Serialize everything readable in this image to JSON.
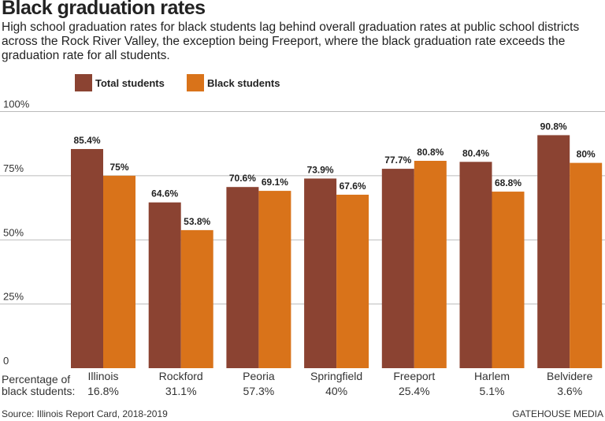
{
  "chart_data": {
    "type": "bar",
    "title": "Black graduation rates",
    "subtitle": "High school graduation rates for black students lag behind overall graduation rates at public school districts across the Rock River Valley, the exception being Freeport, where the black graduation rate exceeds the graduation rate for all students.",
    "categories": [
      "Illinois",
      "Rockford",
      "Peoria",
      "Springfield",
      "Freeport",
      "Harlem",
      "Belvidere"
    ],
    "series": [
      {
        "name": "Total students",
        "color": "#8B4332",
        "values": [
          85.4,
          64.6,
          70.6,
          73.9,
          77.7,
          80.4,
          90.8
        ],
        "labels": [
          "85.4%",
          "64.6%",
          "70.6%",
          "73.9%",
          "77.7%",
          "80.4%",
          "90.8%"
        ]
      },
      {
        "name": "Black students",
        "color": "#D9731A",
        "values": [
          75,
          53.8,
          69.1,
          67.6,
          80.8,
          68.8,
          80
        ],
        "labels": [
          "75%",
          "53.8%",
          "69.1%",
          "67.6%",
          "80.8%",
          "68.8%",
          "80%"
        ]
      }
    ],
    "ylim": [
      0,
      100
    ],
    "yticks": [
      0,
      25,
      50,
      75,
      100
    ],
    "ytick_labels": [
      "0",
      "25%",
      "50%",
      "75%",
      "100%"
    ],
    "grid": true,
    "legend": "top",
    "secondary_label": [
      "Percentage of",
      "black students:"
    ],
    "black_student_share": [
      "16.8%",
      "31.1%",
      "57.3%",
      "40%",
      "25.4%",
      "5.1%",
      "3.6%"
    ],
    "source": "Source: Illinois Report Card, 2018-2019",
    "credit": "GATEHOUSE MEDIA"
  }
}
